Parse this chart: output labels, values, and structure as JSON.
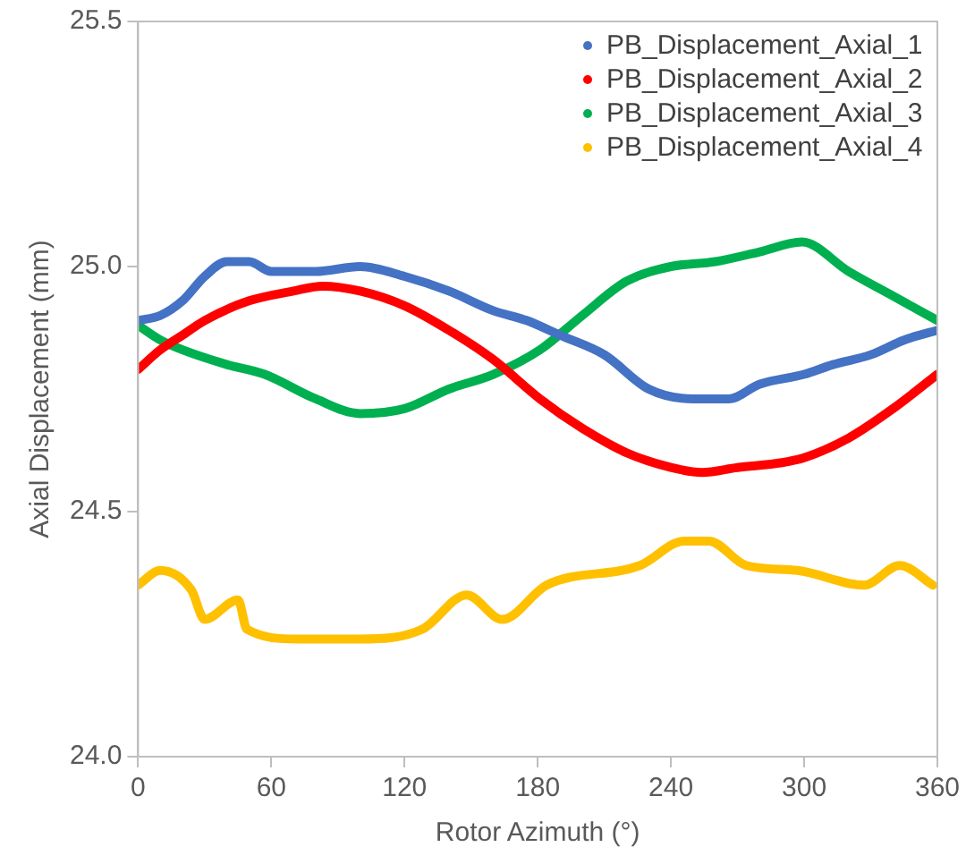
{
  "chart_data": {
    "type": "line",
    "xlabel": "Rotor Azimuth (°)",
    "ylabel": "Axial Displacement (mm)",
    "xlim": [
      0,
      360
    ],
    "xticks": [
      0,
      60,
      120,
      180,
      240,
      300,
      360
    ],
    "ylim": [
      24,
      25.5
    ],
    "yticks": [
      {
        "value": 24,
        "label": "24.0"
      },
      {
        "value": 24.5,
        "label": "24.5"
      },
      {
        "value": 25,
        "label": "25.0"
      },
      {
        "value": 25.5,
        "label": "25.5"
      }
    ],
    "grid": false,
    "legend": "top right",
    "marker": "none",
    "line_style": "solid",
    "series": [
      {
        "name": "PB_Displacement_Axial_1",
        "color": "#4472c4",
        "x": [
          0,
          10,
          20,
          30,
          40,
          50,
          60,
          80,
          100,
          120,
          140,
          160,
          175,
          190,
          210,
          230,
          250,
          266,
          280,
          300,
          313,
          330,
          345,
          360
        ],
        "values": [
          24.89,
          24.9,
          24.93,
          24.98,
          25.01,
          25.01,
          24.99,
          24.99,
          25,
          24.98,
          24.95,
          24.91,
          24.89,
          24.86,
          24.82,
          24.75,
          24.73,
          24.73,
          24.76,
          24.78,
          24.8,
          24.82,
          24.85,
          24.87
        ]
      },
      {
        "name": "PB_Displacement_Axial_2",
        "color": "#ff0000",
        "x": [
          0,
          10,
          20,
          30,
          50,
          70,
          83,
          100,
          120,
          140,
          160,
          181,
          200,
          220,
          240,
          254,
          270,
          290,
          300,
          320,
          340,
          360
        ],
        "values": [
          24.79,
          24.83,
          24.86,
          24.89,
          24.93,
          24.95,
          24.96,
          24.95,
          24.92,
          24.87,
          24.81,
          24.73,
          24.67,
          24.62,
          24.59,
          24.58,
          24.59,
          24.6,
          24.61,
          24.65,
          24.71,
          24.78
        ]
      },
      {
        "name": "PB_Displacement_Axial_3",
        "color": "#00b050",
        "x": [
          0,
          10,
          20,
          40,
          57,
          80,
          100,
          120,
          140,
          160,
          181,
          200,
          220,
          240,
          260,
          280,
          299,
          320,
          340,
          360
        ],
        "values": [
          24.88,
          24.85,
          24.83,
          24.8,
          24.78,
          24.73,
          24.7,
          24.71,
          24.75,
          24.78,
          24.83,
          24.9,
          24.97,
          25,
          25.01,
          25.03,
          25.05,
          24.99,
          24.94,
          24.89
        ]
      },
      {
        "name": "PB_Displacement_Axial_4",
        "color": "#ffc000",
        "x": [
          0,
          10,
          24,
          30,
          45,
          49,
          72,
          100,
          128,
          148,
          164,
          184,
          226,
          246,
          257,
          274,
          297,
          327,
          343,
          358
        ],
        "values": [
          24.35,
          24.38,
          24.34,
          24.28,
          24.32,
          24.26,
          24.24,
          24.24,
          24.26,
          24.33,
          24.28,
          24.35,
          24.39,
          24.44,
          24.44,
          24.39,
          24.38,
          24.35,
          24.39,
          24.35
        ]
      }
    ]
  }
}
